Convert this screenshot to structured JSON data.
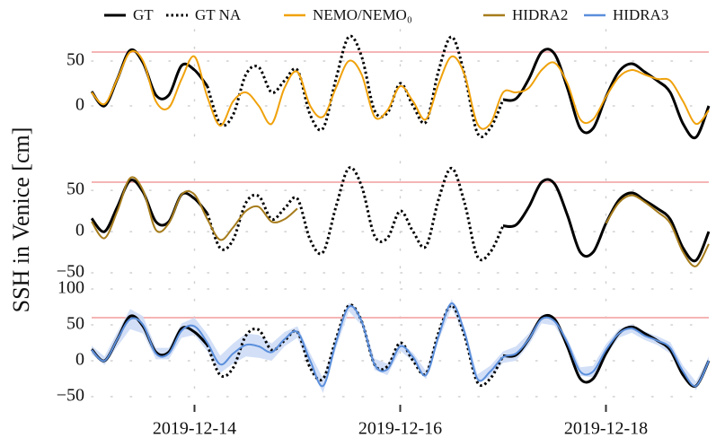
{
  "chart_data": {
    "type": "line",
    "y_label": "SSH in Venice [cm]",
    "x": [
      0,
      0.125,
      0.25,
      0.375,
      0.5,
      0.625,
      0.75,
      0.875,
      1,
      1.125,
      1.25,
      1.375,
      1.5,
      1.625,
      1.75,
      1.875,
      2,
      2.125,
      2.25,
      2.375,
      2.5,
      2.625,
      2.75,
      2.875,
      3,
      3.125,
      3.25,
      3.375,
      3.5,
      3.625,
      3.75,
      3.875,
      4,
      4.125,
      4.25,
      4.375,
      4.5,
      4.625,
      4.75,
      4.875,
      5,
      5.125,
      5.25,
      5.375,
      5.5,
      5.625,
      5.75,
      5.875,
      6
    ],
    "xlim": [
      0,
      6
    ],
    "xticks": [
      {
        "value": 1,
        "label": "2019-12-14"
      },
      {
        "value": 3,
        "label": "2019-12-16"
      },
      {
        "value": 5,
        "label": "2019-12-18"
      }
    ],
    "grid": true,
    "threshold": 60,
    "threshold_color": "#f5b5b5",
    "truth": [
      {
        "name": "GT",
        "color": "#000000",
        "dash": "solid",
        "values": [
          16,
          0,
          30,
          62,
          48,
          12,
          12,
          45,
          40,
          22,
          null,
          null,
          null,
          null,
          null,
          null,
          null,
          null,
          null,
          null,
          null,
          null,
          null,
          null,
          null,
          null,
          null,
          null,
          null,
          null,
          null,
          null,
          7,
          8,
          30,
          60,
          58,
          20,
          -25,
          -25,
          10,
          38,
          47,
          38,
          28,
          15,
          -20,
          -35,
          0
        ]
      },
      {
        "name": "GT NA",
        "color": "#000000",
        "dash": "dotted",
        "values": [
          null,
          null,
          null,
          null,
          null,
          null,
          null,
          null,
          null,
          22,
          -20,
          -10,
          35,
          43,
          15,
          28,
          40,
          -10,
          -25,
          30,
          77,
          55,
          -5,
          -8,
          25,
          0,
          -18,
          40,
          77,
          35,
          -30,
          -25,
          7,
          null,
          null,
          null,
          null,
          null,
          null,
          null,
          null,
          null,
          null,
          null,
          null,
          null,
          null,
          null,
          null
        ]
      }
    ],
    "panels": [
      {
        "ylim": [
          -45,
          85
        ],
        "yticks": [
          0,
          50
        ],
        "series": [
          {
            "name": "NEMO/NEMO₀",
            "color": "#f0a20c",
            "values": [
              15,
              2,
              30,
              60,
              50,
              5,
              -2,
              30,
              55,
              10,
              -22,
              5,
              15,
              0,
              -20,
              20,
              38,
              0,
              -12,
              20,
              50,
              35,
              -12,
              -5,
              22,
              5,
              -15,
              25,
              55,
              35,
              -20,
              -20,
              15,
              15,
              20,
              40,
              48,
              25,
              -15,
              -15,
              10,
              32,
              40,
              35,
              30,
              28,
              5,
              -20,
              -5
            ]
          }
        ]
      },
      {
        "ylim": [
          -50,
          85
        ],
        "yticks": [
          {
            "value": -50,
            "label": "−50"
          },
          0,
          50
        ],
        "series": [
          {
            "name": "HIDRA2",
            "color": "#a67c1c",
            "values": [
              12,
              -8,
              25,
              65,
              50,
              2,
              10,
              45,
              45,
              15,
              -10,
              5,
              25,
              30,
              12,
              15,
              28,
              null,
              null,
              null,
              null,
              null,
              null,
              null,
              null,
              null,
              null,
              null,
              null,
              null,
              null,
              null,
              null,
              null,
              null,
              null,
              null,
              null,
              null,
              null,
              10,
              35,
              44,
              36,
              24,
              10,
              -25,
              -42,
              -15
            ]
          }
        ]
      },
      {
        "ylim": [
          -60,
          110
        ],
        "yticks": [
          {
            "value": -50,
            "label": "−50"
          },
          0,
          50,
          100
        ],
        "series": [
          {
            "name": "HIDRA3",
            "color": "#5b8fdc",
            "band_color": "#cddcf6",
            "values": [
              15,
              0,
              30,
              58,
              50,
              10,
              10,
              42,
              48,
              25,
              -5,
              10,
              22,
              20,
              12,
              30,
              40,
              0,
              -35,
              25,
              75,
              55,
              -5,
              -12,
              20,
              5,
              -20,
              35,
              80,
              40,
              -25,
              -15,
              5,
              10,
              30,
              58,
              55,
              25,
              -15,
              -15,
              15,
              38,
              45,
              35,
              28,
              18,
              -15,
              -35,
              0
            ],
            "errors": [
              6,
              6,
              10,
              14,
              12,
              8,
              8,
              10,
              12,
              12,
              12,
              14,
              16,
              16,
              12,
              10,
              8,
              10,
              10,
              8,
              6,
              6,
              8,
              8,
              6,
              6,
              6,
              6,
              6,
              6,
              6,
              8,
              8,
              10,
              8,
              6,
              6,
              6,
              6,
              8,
              8,
              6,
              6,
              6,
              6,
              8,
              8,
              6,
              6
            ]
          }
        ]
      }
    ]
  }
}
